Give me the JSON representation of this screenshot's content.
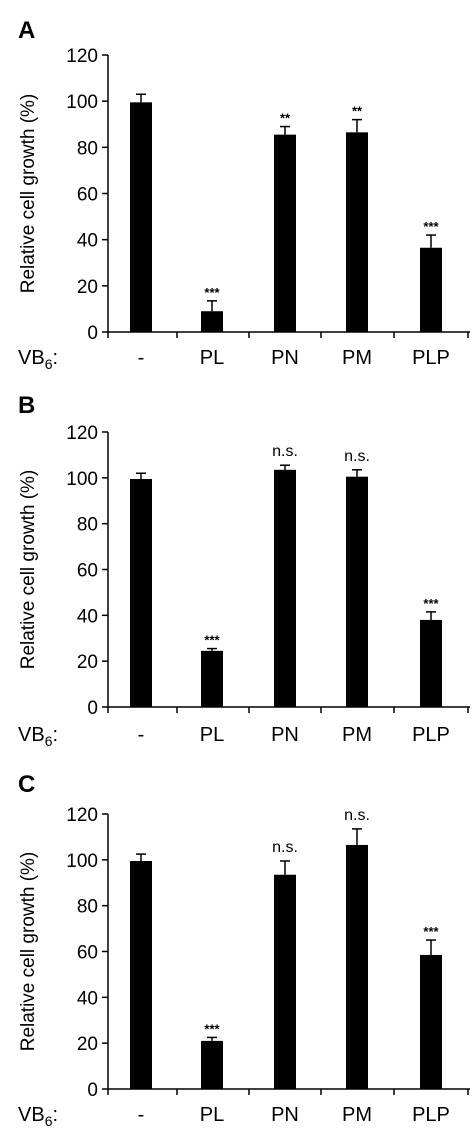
{
  "chart_data": [
    {
      "type": "bar",
      "panel": "A",
      "categories": [
        "-",
        "PL",
        "PN",
        "PM",
        "PLP"
      ],
      "values": [
        99.5,
        9,
        85.5,
        86.5,
        36.5
      ],
      "errors": [
        3.5,
        4.5,
        3.5,
        5.5,
        5.5
      ],
      "significance": [
        "",
        "***",
        "**",
        "**",
        "***"
      ],
      "ylabel": "Relative cell growth (%)",
      "xaxis_label": {
        "main": "VB",
        "sub": "6",
        "suffix": ":"
      },
      "ylim": [
        0,
        120
      ],
      "yticks": [
        0,
        20,
        40,
        60,
        80,
        100,
        120
      ],
      "grid": false,
      "color": "#000000"
    },
    {
      "type": "bar",
      "panel": "B",
      "categories": [
        "-",
        "PL",
        "PN",
        "PM",
        "PLP"
      ],
      "values": [
        99.5,
        24.5,
        103.5,
        100.5,
        38
      ],
      "errors": [
        2.5,
        1,
        2,
        3,
        3.5
      ],
      "significance": [
        "",
        "***",
        "n.s.",
        "n.s.",
        "***"
      ],
      "ylabel": "Relative cell growth (%)",
      "xaxis_label": {
        "main": "VB",
        "sub": "6",
        "suffix": ":"
      },
      "ylim": [
        0,
        120
      ],
      "yticks": [
        0,
        20,
        40,
        60,
        80,
        100,
        120
      ],
      "grid": false,
      "color": "#000000"
    },
    {
      "type": "bar",
      "panel": "C",
      "categories": [
        "-",
        "PL",
        "PN",
        "PM",
        "PLP"
      ],
      "values": [
        99.5,
        21,
        93.5,
        106.5,
        58.5
      ],
      "errors": [
        3,
        1.5,
        6,
        7,
        6.5
      ],
      "significance": [
        "",
        "***",
        "n.s.",
        "n.s.",
        "***"
      ],
      "ylabel": "Relative cell growth (%)",
      "xaxis_label": {
        "main": "VB",
        "sub": "6",
        "suffix": ":"
      },
      "ylim": [
        0,
        120
      ],
      "yticks": [
        0,
        20,
        40,
        60,
        80,
        100,
        120
      ],
      "grid": false,
      "color": "#000000"
    }
  ]
}
